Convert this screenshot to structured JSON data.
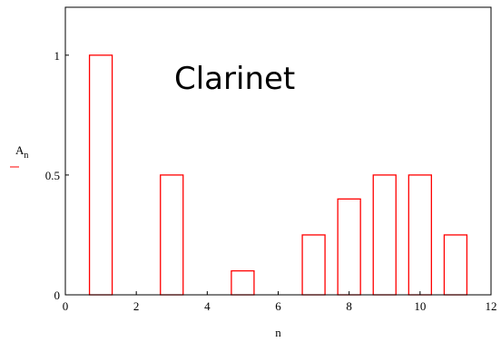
{
  "chart_data": {
    "type": "bar",
    "title": "Clarinet",
    "xlabel": "n",
    "ylabel": "A",
    "ylabel_subscript": "n",
    "x": [
      1,
      2,
      3,
      4,
      5,
      6,
      7,
      8,
      9,
      10,
      11
    ],
    "values": [
      1.0,
      0.0,
      0.5,
      0.0,
      0.1,
      0.0,
      0.25,
      0.4,
      0.5,
      0.5,
      0.25
    ],
    "xlim": [
      0,
      12
    ],
    "ylim": [
      0,
      1.2
    ],
    "xticks": [
      0,
      2,
      4,
      6,
      8,
      10,
      12
    ],
    "yticks": [
      0,
      0.5,
      1
    ],
    "xtick_labels": [
      "0",
      "2",
      "4",
      "6",
      "8",
      "10",
      "12"
    ],
    "ytick_labels": [
      "0",
      "0.5",
      "1"
    ],
    "grid": false,
    "colors": {
      "bar": "#ff0000",
      "axis": "#000000"
    }
  }
}
